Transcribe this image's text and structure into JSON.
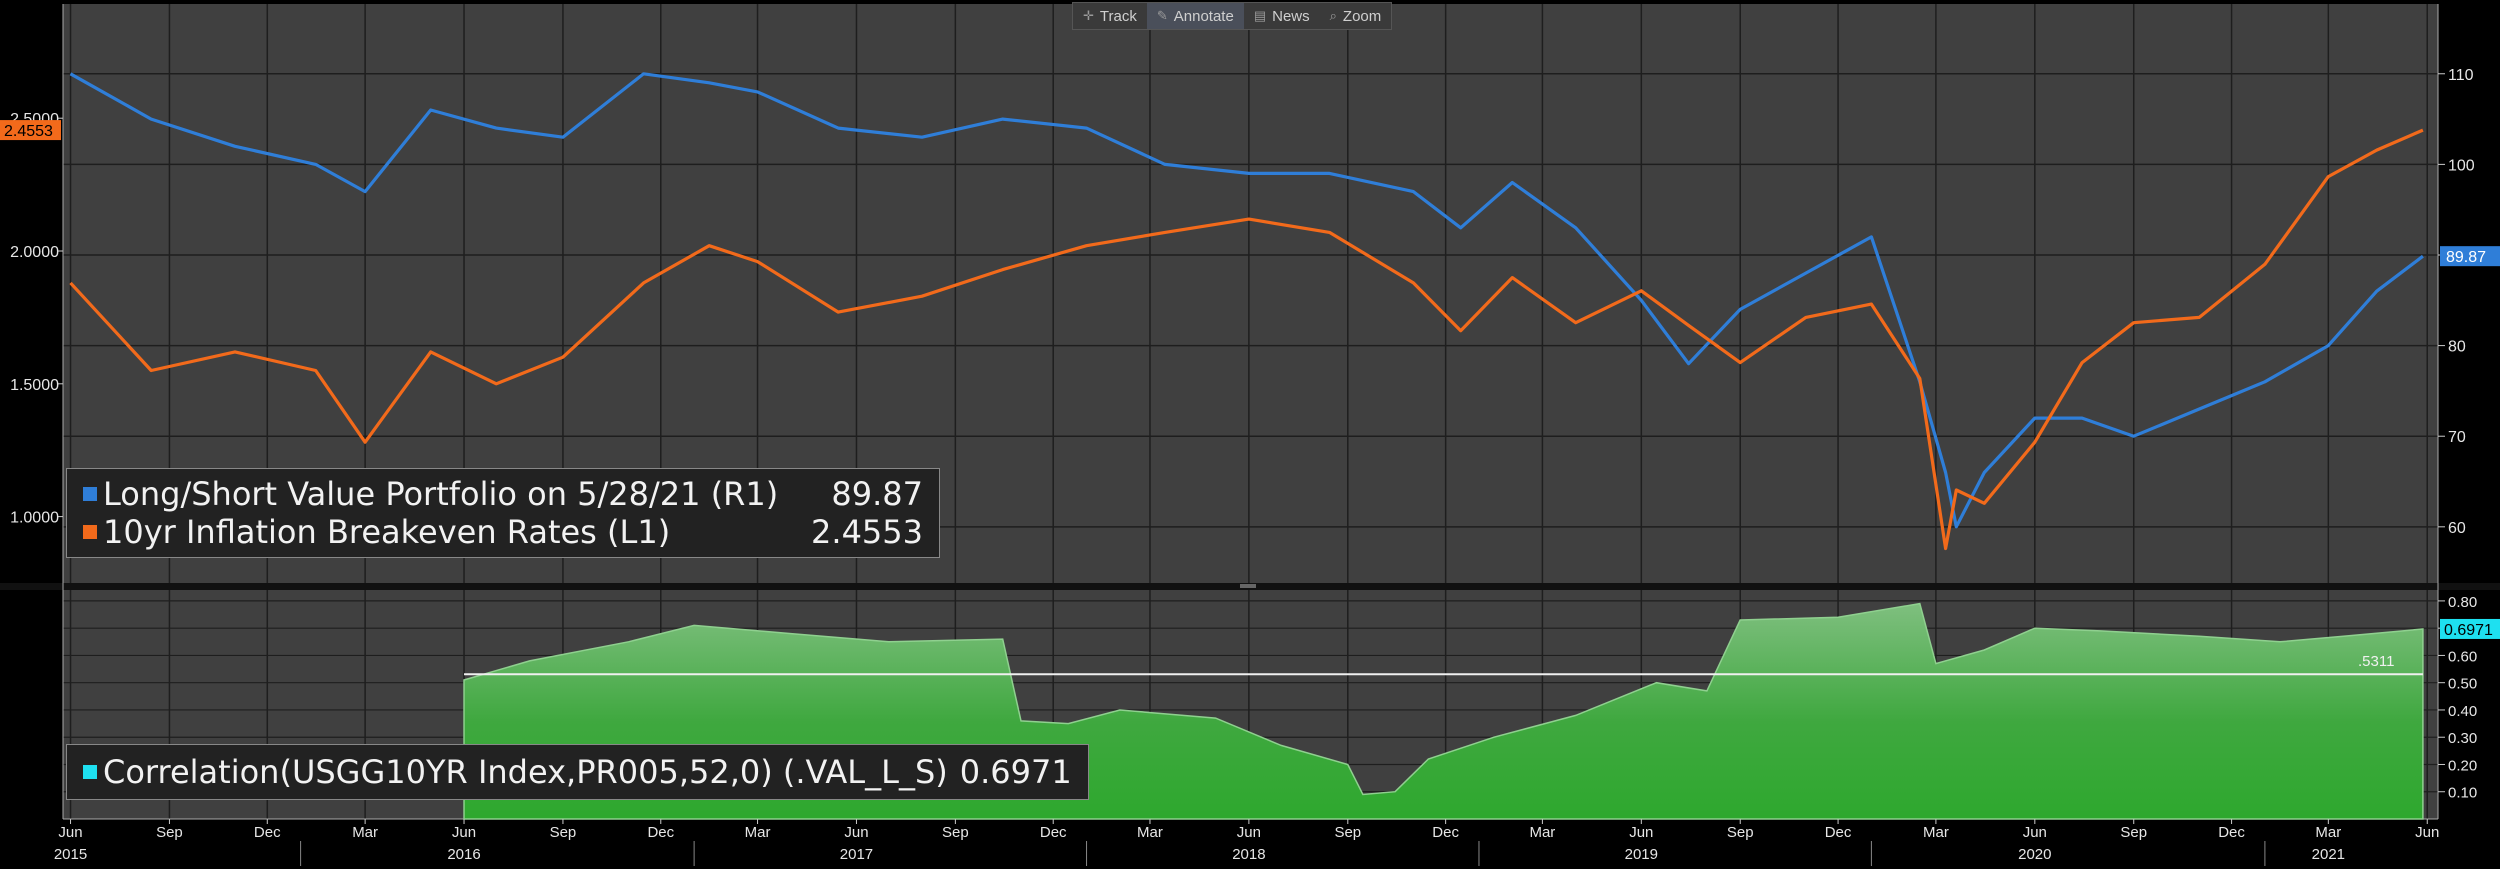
{
  "toolbar": {
    "track": "Track",
    "annotate": "Annotate",
    "news": "News",
    "zoom": "Zoom"
  },
  "colors": {
    "background": "#404040",
    "portfolio": "#2f7ed8",
    "breakeven": "#f26a1b",
    "correlation_fill": "#2ea82e",
    "correlation_marker": "#1ee0f0",
    "grid": "#1e1e1e"
  },
  "legend_top": {
    "portfolio_label": "Long/Short Value Portfolio on 5/28/21 (R1)",
    "portfolio_value": "89.87",
    "breakeven_label": "10yr Inflation Breakeven Rates (L1)",
    "breakeven_value": "2.4553"
  },
  "legend_bottom": {
    "correlation_label": "Correlation(USGG10YR Index,PR005,52,0) (.VAL_L_S)",
    "correlation_value": "0.6971"
  },
  "chart_data": [
    {
      "type": "line",
      "x": [
        "2015-06-01",
        "2015-08-15",
        "2015-11-01",
        "2016-01-15",
        "2016-03-01",
        "2016-05-01",
        "2016-07-01",
        "2016-09-01",
        "2016-11-15",
        "2017-01-15",
        "2017-03-01",
        "2017-05-15",
        "2017-08-01",
        "2017-10-15",
        "2018-01-01",
        "2018-03-15",
        "2018-06-01",
        "2018-08-15",
        "2018-11-01",
        "2018-12-15",
        "2019-02-01",
        "2019-04-01",
        "2019-06-01",
        "2019-07-15",
        "2019-09-01",
        "2019-11-01",
        "2020-01-01",
        "2020-02-15",
        "2020-03-10",
        "2020-03-20",
        "2020-04-15",
        "2020-06-01",
        "2020-07-15",
        "2020-09-01",
        "2020-11-01",
        "2021-01-01",
        "2021-03-01",
        "2021-04-15",
        "2021-05-28"
      ],
      "series": [
        {
          "name": "10yr Inflation Breakeven Rates (L1)",
          "axis": "left",
          "values": [
            1.88,
            1.55,
            1.62,
            1.55,
            1.28,
            1.62,
            1.5,
            1.6,
            1.88,
            2.02,
            1.96,
            1.77,
            1.83,
            1.93,
            2.02,
            2.07,
            2.12,
            2.07,
            1.88,
            1.7,
            1.9,
            1.73,
            1.85,
            1.72,
            1.58,
            1.75,
            1.8,
            1.52,
            0.88,
            1.1,
            1.05,
            1.28,
            1.58,
            1.73,
            1.75,
            1.95,
            2.28,
            2.38,
            2.4553
          ]
        },
        {
          "name": "Long/Short Value Portfolio on 5/28/21 (R1)",
          "axis": "right",
          "values": [
            110,
            105,
            102,
            100,
            97,
            106,
            104,
            103,
            110,
            109,
            108,
            104,
            103,
            105,
            104,
            100,
            99,
            99,
            97,
            93,
            98,
            93,
            85,
            78,
            84,
            88,
            92,
            76,
            66,
            60,
            66,
            72,
            72,
            70,
            73,
            76,
            80,
            86,
            89.87
          ]
        }
      ],
      "left_ticks": [
        "1.0000",
        "1.5000",
        "2.0000",
        "2.5000"
      ],
      "right_ticks": [
        "60",
        "70",
        "80",
        "90",
        "100",
        "110"
      ],
      "left_current": "2.4553",
      "right_current": "89.87",
      "ylim_left": [
        0.75,
        2.93
      ],
      "ylim_right": [
        53.8,
        117.7
      ]
    },
    {
      "type": "area",
      "x": [
        "2016-06-01",
        "2016-08-01",
        "2016-11-01",
        "2017-01-01",
        "2017-04-01",
        "2017-07-01",
        "2017-10-15",
        "2017-11-01",
        "2017-12-15",
        "2018-02-01",
        "2018-05-01",
        "2018-07-01",
        "2018-09-01",
        "2018-09-15",
        "2018-10-15",
        "2018-11-15",
        "2019-01-15",
        "2019-04-01",
        "2019-06-15",
        "2019-08-01",
        "2019-09-01",
        "2019-12-01",
        "2020-02-15",
        "2020-03-01",
        "2020-04-15",
        "2020-06-01",
        "2020-08-01",
        "2020-11-01",
        "2021-01-15",
        "2021-03-15",
        "2021-05-28"
      ],
      "values": [
        0.51,
        0.58,
        0.65,
        0.71,
        0.68,
        0.65,
        0.66,
        0.36,
        0.35,
        0.4,
        0.37,
        0.27,
        0.2,
        0.09,
        0.1,
        0.22,
        0.3,
        0.38,
        0.5,
        0.47,
        0.73,
        0.74,
        0.79,
        0.57,
        0.62,
        0.7,
        0.69,
        0.67,
        0.65,
        0.67,
        0.6971
      ],
      "mean_line": 0.5311,
      "mean_label": ".5311",
      "current": "0.6971",
      "ticks": [
        "0.10",
        "0.20",
        "0.30",
        "0.40",
        "0.50",
        "0.60",
        "0.70",
        "0.80"
      ],
      "ylim": [
        0.0,
        0.84
      ]
    }
  ],
  "x_axis": {
    "months": [
      {
        "d": "2015-06-01",
        "label": "Jun"
      },
      {
        "d": "2015-09-01",
        "label": "Sep"
      },
      {
        "d": "2015-12-01",
        "label": "Dec"
      },
      {
        "d": "2016-03-01",
        "label": "Mar"
      },
      {
        "d": "2016-06-01",
        "label": "Jun"
      },
      {
        "d": "2016-09-01",
        "label": "Sep"
      },
      {
        "d": "2016-12-01",
        "label": "Dec"
      },
      {
        "d": "2017-03-01",
        "label": "Mar"
      },
      {
        "d": "2017-06-01",
        "label": "Jun"
      },
      {
        "d": "2017-09-01",
        "label": "Sep"
      },
      {
        "d": "2017-12-01",
        "label": "Dec"
      },
      {
        "d": "2018-03-01",
        "label": "Mar"
      },
      {
        "d": "2018-06-01",
        "label": "Jun"
      },
      {
        "d": "2018-09-01",
        "label": "Sep"
      },
      {
        "d": "2018-12-01",
        "label": "Dec"
      },
      {
        "d": "2019-03-01",
        "label": "Mar"
      },
      {
        "d": "2019-06-01",
        "label": "Jun"
      },
      {
        "d": "2019-09-01",
        "label": "Sep"
      },
      {
        "d": "2019-12-01",
        "label": "Dec"
      },
      {
        "d": "2020-03-01",
        "label": "Mar"
      },
      {
        "d": "2020-06-01",
        "label": "Jun"
      },
      {
        "d": "2020-09-01",
        "label": "Sep"
      },
      {
        "d": "2020-12-01",
        "label": "Dec"
      },
      {
        "d": "2021-03-01",
        "label": "Mar"
      },
      {
        "d": "2021-06-01",
        "label": "Jun"
      }
    ],
    "years": [
      {
        "d": "2015-06-01",
        "label": "2015"
      },
      {
        "d": "2016-06-01",
        "label": "2016"
      },
      {
        "d": "2017-06-01",
        "label": "2017"
      },
      {
        "d": "2018-06-01",
        "label": "2018"
      },
      {
        "d": "2019-06-01",
        "label": "2019"
      },
      {
        "d": "2020-06-01",
        "label": "2020"
      },
      {
        "d": "2021-03-01",
        "label": "2021"
      }
    ],
    "year_bounds": [
      "2016-01-01",
      "2017-01-01",
      "2018-01-01",
      "2019-01-01",
      "2020-01-01",
      "2021-01-01"
    ],
    "range": [
      "2015-05-25",
      "2021-06-11"
    ]
  }
}
